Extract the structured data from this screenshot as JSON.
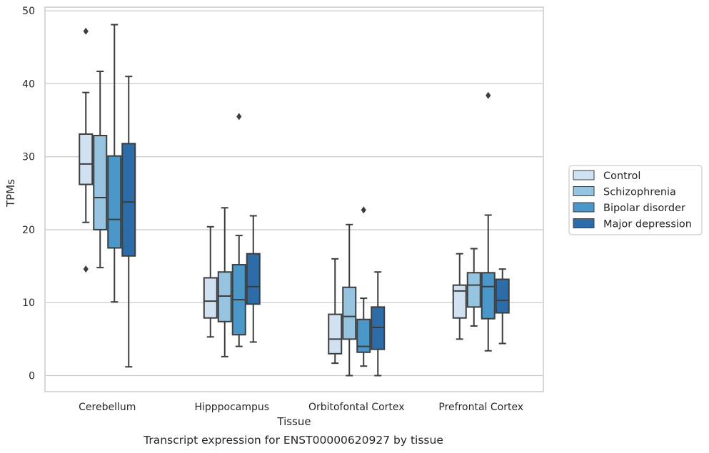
{
  "chart_data": {
    "type": "boxplot",
    "title": "",
    "caption": "Transcript expression for ENST00000620927 by tissue",
    "xlabel": "Tissue",
    "ylabel": "TPMs",
    "ylim": [
      -2.2,
      50.5
    ],
    "yticks": [
      0,
      10,
      20,
      30,
      40,
      50
    ],
    "grid": "horizontal",
    "legend_position": "right",
    "categories": [
      "Cerebellum",
      "Hipppocampus",
      "Orbitofontal Cortex",
      "Prefrontal Cortex"
    ],
    "series": [
      {
        "name": "Control",
        "color": "#d0e1f2",
        "boxes": [
          {
            "whislo": 21.0,
            "q1": 26.2,
            "med": 29.0,
            "q3": 33.1,
            "whishi": 38.8,
            "fliers": [
              47.2,
              14.6
            ]
          },
          {
            "whislo": 5.3,
            "q1": 7.9,
            "med": 10.2,
            "q3": 13.4,
            "whishi": 20.4,
            "fliers": []
          },
          {
            "whislo": 1.7,
            "q1": 3.0,
            "med": 5.0,
            "q3": 8.4,
            "whishi": 16.0,
            "fliers": []
          },
          {
            "whislo": 5.0,
            "q1": 7.9,
            "med": 11.6,
            "q3": 12.4,
            "whishi": 16.7,
            "fliers": []
          }
        ]
      },
      {
        "name": "Schizophrenia",
        "color": "#94c4df",
        "boxes": [
          {
            "whislo": 14.8,
            "q1": 20.0,
            "med": 24.4,
            "q3": 32.9,
            "whishi": 41.7,
            "fliers": []
          },
          {
            "whislo": 2.6,
            "q1": 7.4,
            "med": 10.9,
            "q3": 14.2,
            "whishi": 23.0,
            "fliers": []
          },
          {
            "whislo": 0.0,
            "q1": 5.0,
            "med": 8.1,
            "q3": 12.1,
            "whishi": 20.7,
            "fliers": []
          },
          {
            "whislo": 6.8,
            "q1": 9.4,
            "med": 12.4,
            "q3": 14.1,
            "whishi": 17.4,
            "fliers": []
          }
        ]
      },
      {
        "name": "Bipolar disorder",
        "color": "#4a98c9",
        "boxes": [
          {
            "whislo": 10.1,
            "q1": 17.5,
            "med": 21.4,
            "q3": 30.1,
            "whishi": 48.1,
            "fliers": []
          },
          {
            "whislo": 4.0,
            "q1": 5.6,
            "med": 10.4,
            "q3": 15.2,
            "whishi": 19.2,
            "fliers": [
              35.5
            ]
          },
          {
            "whislo": 1.3,
            "q1": 3.2,
            "med": 4.0,
            "q3": 7.7,
            "whishi": 10.6,
            "fliers": [
              22.7
            ]
          },
          {
            "whislo": 3.4,
            "q1": 7.8,
            "med": 12.2,
            "q3": 14.1,
            "whishi": 22.0,
            "fliers": [
              38.4
            ]
          }
        ]
      },
      {
        "name": "Major depression",
        "color": "#2b6ca9",
        "boxes": [
          {
            "whislo": 1.2,
            "q1": 16.4,
            "med": 23.8,
            "q3": 31.8,
            "whishi": 41.0,
            "fliers": []
          },
          {
            "whislo": 4.6,
            "q1": 9.8,
            "med": 12.2,
            "q3": 16.7,
            "whishi": 21.9,
            "fliers": []
          },
          {
            "whislo": 0.0,
            "q1": 3.6,
            "med": 6.6,
            "q3": 9.4,
            "whishi": 14.2,
            "fliers": []
          },
          {
            "whislo": 4.4,
            "q1": 8.6,
            "med": 10.3,
            "q3": 13.2,
            "whishi": 14.6,
            "fliers": []
          }
        ]
      }
    ]
  }
}
